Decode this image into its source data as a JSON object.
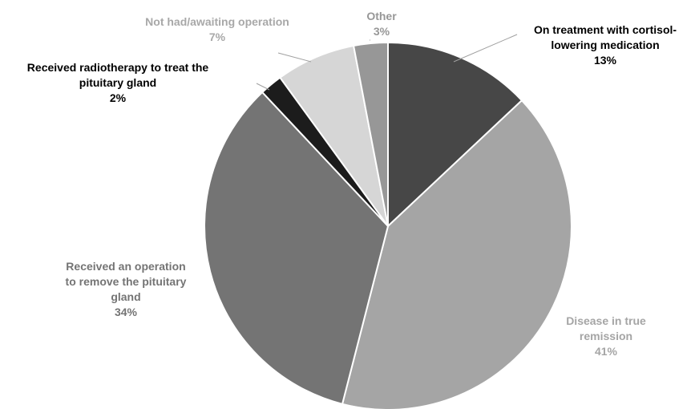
{
  "chart_data": {
    "type": "pie",
    "title": "",
    "start_angle_deg": 0,
    "direction": "clockwise",
    "slices": [
      {
        "label_lines": [
          "On treatment with cortisol-",
          "lowering medication"
        ],
        "value": 13,
        "value_label": "13%",
        "color": "#474747",
        "label_color": "#000000"
      },
      {
        "label_lines": [
          "Disease in true",
          "remission"
        ],
        "value": 41,
        "value_label": "41%",
        "color": "#a5a5a5",
        "label_color": "#a5a5a5"
      },
      {
        "label_lines": [
          "Received an operation",
          "to remove the pituitary",
          "gland"
        ],
        "value": 34,
        "value_label": "34%",
        "color": "#747474",
        "label_color": "#747474"
      },
      {
        "label_lines": [
          "Received radiotherapy to treat the",
          "pituitary gland"
        ],
        "value": 2,
        "value_label": "2%",
        "color": "#1c1c1c",
        "label_color": "#000000"
      },
      {
        "label_lines": [
          "Not had/awaiting operation"
        ],
        "value": 7,
        "value_label": "7%",
        "color": "#d6d6d6",
        "label_color": "#a8a8a8"
      },
      {
        "label_lines": [
          "Other"
        ],
        "value": 3,
        "value_label": "3%",
        "color": "#979797",
        "label_color": "#979797"
      }
    ],
    "legend": "none"
  }
}
